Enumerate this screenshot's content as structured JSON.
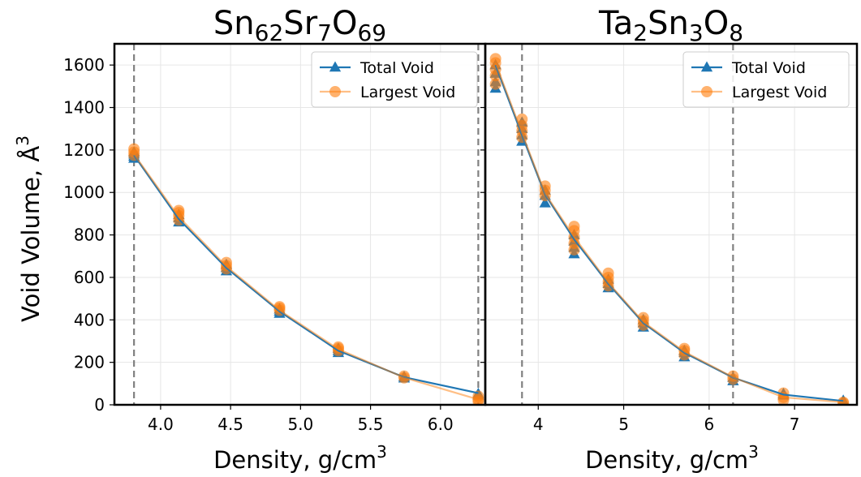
{
  "figure": {
    "ylabel": "Void Volume, Å",
    "ylabel_sup": "3",
    "xlabel": "Density, g/cm",
    "xlabel_sup": "3"
  },
  "colors": {
    "total": "#1f77b4",
    "largest": "#ff7f0e",
    "vline": "#808080",
    "grid": "#e6e6e6"
  },
  "chart_data": [
    {
      "type": "line",
      "title_parts": [
        {
          "t": "Sn",
          "sub": false
        },
        {
          "t": "62",
          "sub": true
        },
        {
          "t": "Sr",
          "sub": false
        },
        {
          "t": "7",
          "sub": true
        },
        {
          "t": "O",
          "sub": false
        },
        {
          "t": "69",
          "sub": true
        }
      ],
      "xlim": [
        3.67,
        6.32
      ],
      "ylim": [
        0,
        1700
      ],
      "xticks": [
        "4.0",
        "4.5",
        "5.0",
        "5.5",
        "6.0"
      ],
      "yticks": [
        "0",
        "200",
        "400",
        "600",
        "800",
        "1000",
        "1200",
        "1400",
        "1600"
      ],
      "vlines": [
        3.81,
        6.27
      ],
      "legend": {
        "position": "top-right",
        "entries": [
          "Total Void",
          "Largest Void"
        ]
      },
      "grid": true,
      "series": [
        {
          "name": "Total Void",
          "marker": "triangle",
          "line_x": [
            3.81,
            4.13,
            4.47,
            4.85,
            5.27,
            5.74,
            6.27
          ],
          "line_y": [
            1175,
            875,
            645,
            440,
            255,
            130,
            55
          ],
          "points": [
            [
              3.81,
              1160
            ],
            [
              3.81,
              1170
            ],
            [
              3.81,
              1180
            ],
            [
              3.81,
              1190
            ],
            [
              4.13,
              860
            ],
            [
              4.13,
              880
            ],
            [
              4.13,
              895
            ],
            [
              4.47,
              630
            ],
            [
              4.47,
              645
            ],
            [
              4.47,
              660
            ],
            [
              4.85,
              430
            ],
            [
              4.85,
              440
            ],
            [
              4.85,
              450
            ],
            [
              5.27,
              245
            ],
            [
              5.27,
              255
            ],
            [
              5.27,
              265
            ],
            [
              5.74,
              125
            ],
            [
              5.74,
              132
            ],
            [
              6.27,
              52
            ],
            [
              6.27,
              45
            ]
          ]
        },
        {
          "name": "Largest Void",
          "marker": "circle",
          "line_x": [
            3.81,
            4.13,
            4.47,
            4.85,
            5.27,
            5.74,
            6.27
          ],
          "line_y": [
            1180,
            885,
            652,
            445,
            262,
            128,
            25
          ],
          "points": [
            [
              3.81,
              1175
            ],
            [
              3.81,
              1190
            ],
            [
              3.81,
              1205
            ],
            [
              4.13,
              870
            ],
            [
              4.13,
              890
            ],
            [
              4.13,
              905
            ],
            [
              4.13,
              915
            ],
            [
              4.47,
              640
            ],
            [
              4.47,
              655
            ],
            [
              4.47,
              670
            ],
            [
              4.85,
              445
            ],
            [
              4.85,
              455
            ],
            [
              4.85,
              462
            ],
            [
              5.27,
              255
            ],
            [
              5.27,
              265
            ],
            [
              5.27,
              272
            ],
            [
              5.74,
              127
            ],
            [
              5.74,
              135
            ],
            [
              6.27,
              40
            ],
            [
              6.27,
              25
            ],
            [
              6.27,
              15
            ]
          ]
        }
      ]
    },
    {
      "type": "line",
      "title_parts": [
        {
          "t": "Ta",
          "sub": false
        },
        {
          "t": "2",
          "sub": true
        },
        {
          "t": "Sn",
          "sub": false
        },
        {
          "t": "3",
          "sub": true
        },
        {
          "t": "O",
          "sub": false
        },
        {
          "t": "8",
          "sub": true
        }
      ],
      "xlim": [
        3.38,
        7.73
      ],
      "ylim": [
        0,
        1700
      ],
      "xticks": [
        "4",
        "5",
        "6",
        "7"
      ],
      "yticks": [],
      "vlines": [
        3.81,
        6.28
      ],
      "legend": {
        "position": "top-right",
        "entries": [
          "Total Void",
          "Largest Void"
        ]
      },
      "grid": true,
      "series": [
        {
          "name": "Total Void",
          "marker": "triangle",
          "line_x": [
            3.5,
            3.81,
            4.08,
            4.42,
            4.82,
            5.23,
            5.71,
            6.28,
            6.87,
            7.57
          ],
          "line_y": [
            1600,
            1270,
            990,
            780,
            570,
            385,
            245,
            128,
            48,
            18
          ],
          "points": [
            [
              3.5,
              1490
            ],
            [
              3.5,
              1520
            ],
            [
              3.5,
              1560
            ],
            [
              3.5,
              1600
            ],
            [
              3.81,
              1240
            ],
            [
              3.81,
              1270
            ],
            [
              3.81,
              1300
            ],
            [
              3.81,
              1330
            ],
            [
              4.08,
              950
            ],
            [
              4.08,
              985
            ],
            [
              4.08,
              1010
            ],
            [
              4.42,
              710
            ],
            [
              4.42,
              740
            ],
            [
              4.42,
              770
            ],
            [
              4.42,
              800
            ],
            [
              4.82,
              550
            ],
            [
              4.82,
              570
            ],
            [
              4.82,
              590
            ],
            [
              5.23,
              365
            ],
            [
              5.23,
              385
            ],
            [
              5.23,
              400
            ],
            [
              5.71,
              225
            ],
            [
              5.71,
              245
            ],
            [
              5.71,
              255
            ],
            [
              6.28,
              112
            ],
            [
              6.28,
              128
            ],
            [
              6.87,
              45
            ],
            [
              6.87,
              52
            ],
            [
              7.57,
              15
            ],
            [
              7.57,
              20
            ]
          ]
        },
        {
          "name": "Largest Void",
          "marker": "circle",
          "line_x": [
            3.5,
            3.81,
            4.08,
            4.42,
            4.82,
            5.23,
            5.71,
            6.28,
            6.87,
            7.57
          ],
          "line_y": [
            1610,
            1280,
            995,
            790,
            575,
            390,
            250,
            130,
            35,
            12
          ],
          "points": [
            [
              3.5,
              1510
            ],
            [
              3.5,
              1550
            ],
            [
              3.5,
              1580
            ],
            [
              3.5,
              1610
            ],
            [
              3.5,
              1630
            ],
            [
              3.81,
              1260
            ],
            [
              3.81,
              1290
            ],
            [
              3.81,
              1315
            ],
            [
              3.81,
              1345
            ],
            [
              4.08,
              985
            ],
            [
              4.08,
              1010
            ],
            [
              4.08,
              1030
            ],
            [
              4.42,
              730
            ],
            [
              4.42,
              760
            ],
            [
              4.42,
              790
            ],
            [
              4.42,
              820
            ],
            [
              4.42,
              840
            ],
            [
              4.82,
              560
            ],
            [
              4.82,
              580
            ],
            [
              4.82,
              600
            ],
            [
              4.82,
              620
            ],
            [
              5.23,
              375
            ],
            [
              5.23,
              395
            ],
            [
              5.23,
              410
            ],
            [
              5.71,
              235
            ],
            [
              5.71,
              255
            ],
            [
              5.71,
              265
            ],
            [
              6.28,
              120
            ],
            [
              6.28,
              135
            ],
            [
              6.87,
              22
            ],
            [
              6.87,
              35
            ],
            [
              6.87,
              55
            ],
            [
              7.57,
              8
            ],
            [
              7.57,
              12
            ]
          ]
        }
      ]
    }
  ]
}
